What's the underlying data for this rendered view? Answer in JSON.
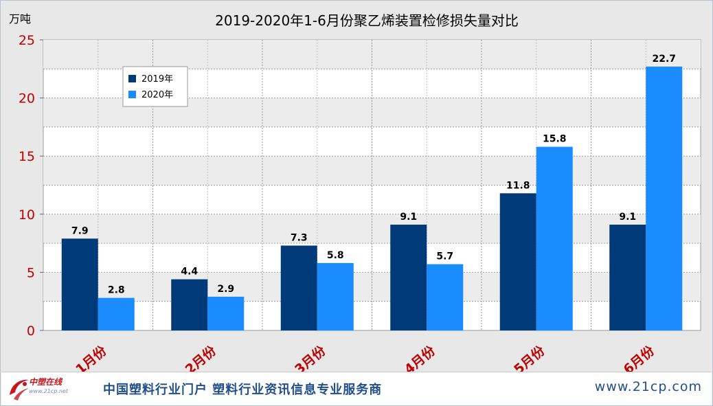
{
  "chart_data": {
    "type": "bar",
    "title": "2019-2020年1-6月份聚乙烯装置检修损失量对比",
    "ylabel": "万吨",
    "xlabel": "",
    "categories": [
      "1月份",
      "2月份",
      "3月份",
      "4月份",
      "5月份",
      "6月份"
    ],
    "series": [
      {
        "name": "2019年",
        "values": [
          7.9,
          4.4,
          7.3,
          9.1,
          11.8,
          9.1
        ],
        "color": "#003a78"
      },
      {
        "name": "2020年",
        "values": [
          2.8,
          2.9,
          5.8,
          5.7,
          15.8,
          22.7
        ],
        "color": "#1a8cff"
      }
    ],
    "ylim": [
      0,
      25
    ],
    "yticks": [
      "0",
      "5",
      "10",
      "15",
      "20",
      "25"
    ],
    "data_labels": [
      [
        "7.9",
        "4.4",
        "7.3",
        "9.1",
        "11.8",
        "9.1"
      ],
      [
        "2.8",
        "2.9",
        "5.8",
        "5.7",
        "15.8",
        "22.7"
      ]
    ],
    "grid": true,
    "legend": "top-left",
    "colors": {
      "tick_label": "#c00000",
      "category_label": "#c00000",
      "grid": "#999999"
    }
  },
  "footer": {
    "logo_text": "中塑在线",
    "logo_url": "www.21cp.net",
    "slogan": "中国塑料行业门户  塑料行业资讯信息专业服务商",
    "site": "www.21cp.com"
  }
}
